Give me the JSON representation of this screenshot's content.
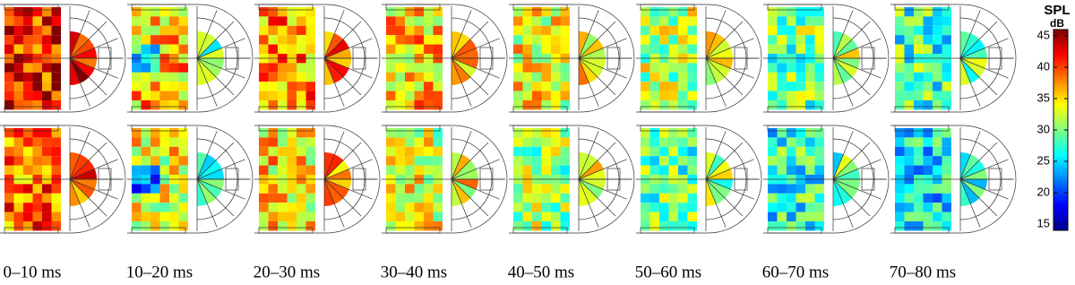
{
  "panels": {
    "time_labels": [
      "0–10 ms",
      "10–20 ms",
      "20–30 ms",
      "30–40 ms",
      "40–50 ms",
      "50–60 ms",
      "60–70 ms",
      "70–80 ms"
    ]
  },
  "colorbar": {
    "title": "SPL",
    "unit": "dB",
    "range": [
      14,
      46
    ],
    "ticks": [
      15,
      20,
      25,
      30,
      35,
      40,
      45
    ]
  }
}
